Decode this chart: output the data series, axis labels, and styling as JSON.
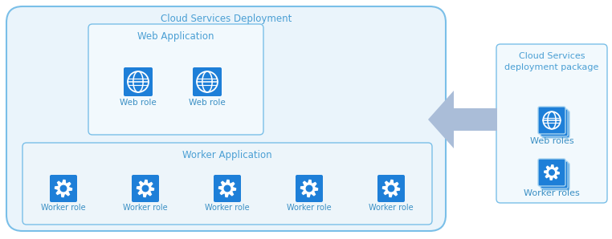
{
  "bg_color": "#ffffff",
  "blue_icon": "#1E7FD8",
  "blue_icon_dark": "#1565C0",
  "blue_border": "#7ABFE8",
  "blue_border_light": "#A8D4F0",
  "box_fill_outer": "#EAF4FB",
  "box_fill_inner_web": "#F2F9FD",
  "box_fill_inner_wrk": "#EDF5FA",
  "box_fill_pkg": "#F2F9FD",
  "arrow_color": "#AABDD8",
  "text_blue": "#4A9FD4",
  "text_blue_label": "#3A8FC4",
  "outer_box_label": "Cloud Services Deployment",
  "web_app_label": "Web Application",
  "worker_app_label": "Worker Application",
  "package_label": "Cloud Services\ndeployment package",
  "web_role_label": "Web role",
  "worker_role_label": "Worker role",
  "web_roles_label": "Web roles",
  "worker_roles_label": "Worker roles",
  "figsize": [
    7.62,
    2.98
  ],
  "dpi": 100
}
